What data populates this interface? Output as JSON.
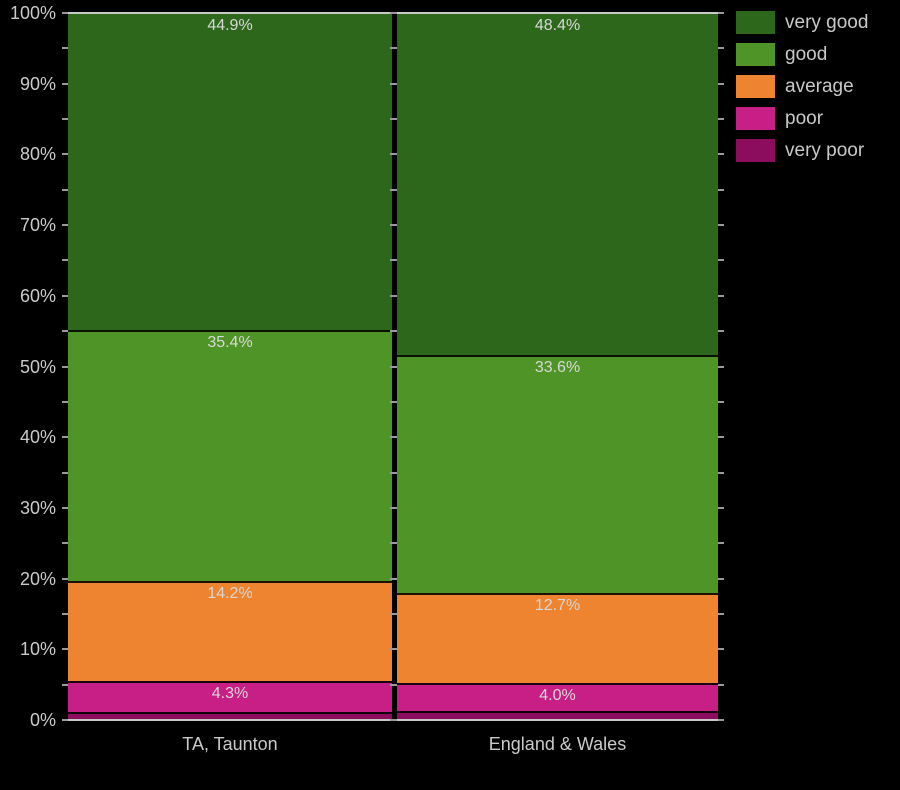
{
  "chart_data": {
    "type": "bar",
    "stacked": true,
    "percent_scale": true,
    "title": "",
    "xlabel": "",
    "ylabel": "",
    "ylim": [
      0,
      100
    ],
    "ytick_major_step": 10,
    "ytick_minor_step": 5,
    "yticklabels": [
      "0%",
      "10%",
      "20%",
      "30%",
      "40%",
      "50%",
      "60%",
      "70%",
      "80%",
      "90%",
      "100%"
    ],
    "categories": [
      "TA, Taunton",
      "England & Wales"
    ],
    "series": [
      {
        "name": "very good",
        "color": "#2d671c",
        "values": [
          44.9,
          48.4
        ],
        "labels": [
          "44.9%",
          "48.4%"
        ],
        "label_visible": true
      },
      {
        "name": "good",
        "color": "#4f9427",
        "values": [
          35.4,
          33.6
        ],
        "labels": [
          "35.4%",
          "33.6%"
        ],
        "label_visible": true
      },
      {
        "name": "average",
        "color": "#ee8430",
        "values": [
          14.2,
          12.7
        ],
        "labels": [
          "14.2%",
          "12.7%"
        ],
        "label_visible": true
      },
      {
        "name": "poor",
        "color": "#c71f85",
        "values": [
          4.3,
          4.0
        ],
        "labels": [
          "4.3%",
          "4.0%"
        ],
        "label_visible": true
      },
      {
        "name": "very poor",
        "color": "#8c0c5e",
        "values": [
          1.2,
          1.3
        ],
        "labels": [
          "",
          ""
        ],
        "label_visible": false
      }
    ],
    "legend_position": "top-right",
    "grid": false
  },
  "colors": {
    "background": "#000000",
    "axis_line": "#c8c8c8",
    "tick": "#9a9a9a",
    "tick_label_text": "#cacaca",
    "bar_label_text": "#d8d8d8",
    "legend_text": "#c9c9c9"
  }
}
